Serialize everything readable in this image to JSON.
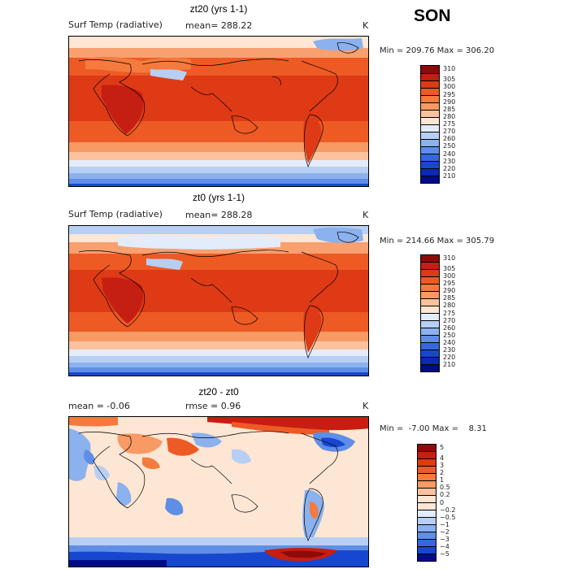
{
  "season": "SON",
  "panels": [
    {
      "title": "zt20 (yrs 1-1)",
      "left_label": "Surf Temp (radiative)",
      "stat1": "mean= 288.22",
      "stat2": "",
      "units": "K",
      "minmax": "Min = 209.76 Max = 306.20",
      "colorbar": {
        "labels": [
          "310",
          "305",
          "300",
          "295",
          "290",
          "285",
          "280",
          "275",
          "270",
          "260",
          "250",
          "240",
          "230",
          "220",
          "210"
        ],
        "colors": [
          "#8f0a0a",
          "#c51e12",
          "#de3a16",
          "#ee5a24",
          "#f47a3e",
          "#f89a64",
          "#fbc29d",
          "#fee6d4",
          "#e3ecfa",
          "#b8cff4",
          "#8bb1ee",
          "#5f8ee6",
          "#3568de",
          "#1847cf",
          "#0a2ab5",
          "#000c86"
        ]
      }
    },
    {
      "title": "zt0 (yrs 1-1)",
      "left_label": "Surf Temp (radiative)",
      "stat1": "mean= 288.28",
      "stat2": "",
      "units": "K",
      "minmax": "Min = 214.66 Max = 305.79",
      "colorbar": {
        "labels": [
          "310",
          "305",
          "300",
          "295",
          "290",
          "285",
          "280",
          "275",
          "270",
          "260",
          "250",
          "240",
          "230",
          "220",
          "210"
        ],
        "colors": [
          "#8f0a0a",
          "#c51e12",
          "#de3a16",
          "#ee5a24",
          "#f47a3e",
          "#f89a64",
          "#fbc29d",
          "#fee6d4",
          "#e3ecfa",
          "#b8cff4",
          "#8bb1ee",
          "#5f8ee6",
          "#3568de",
          "#1847cf",
          "#0a2ab5",
          "#000c86"
        ]
      }
    },
    {
      "title": "zt20 - zt0",
      "left_label": "mean =   -0.06",
      "stat1": "rmse =     0.96",
      "stat2": "",
      "units": "K",
      "minmax": "Min =  -7.00 Max =    8.31",
      "colorbar": {
        "labels": [
          "5",
          "4",
          "3",
          "2",
          "1",
          "0.5",
          "0.2",
          "0",
          "−0.2",
          "−0.5",
          "−1",
          "−2",
          "−3",
          "−4",
          "−5"
        ],
        "colors": [
          "#8f0a0a",
          "#c51e12",
          "#de3a16",
          "#ee5a24",
          "#f47a3e",
          "#f89a64",
          "#fbc29d",
          "#fee6d4",
          "#fee6d4",
          "#e3ecfa",
          "#b8cff4",
          "#8bb1ee",
          "#5f8ee6",
          "#3568de",
          "#1847cf",
          "#000c86"
        ]
      }
    }
  ]
}
